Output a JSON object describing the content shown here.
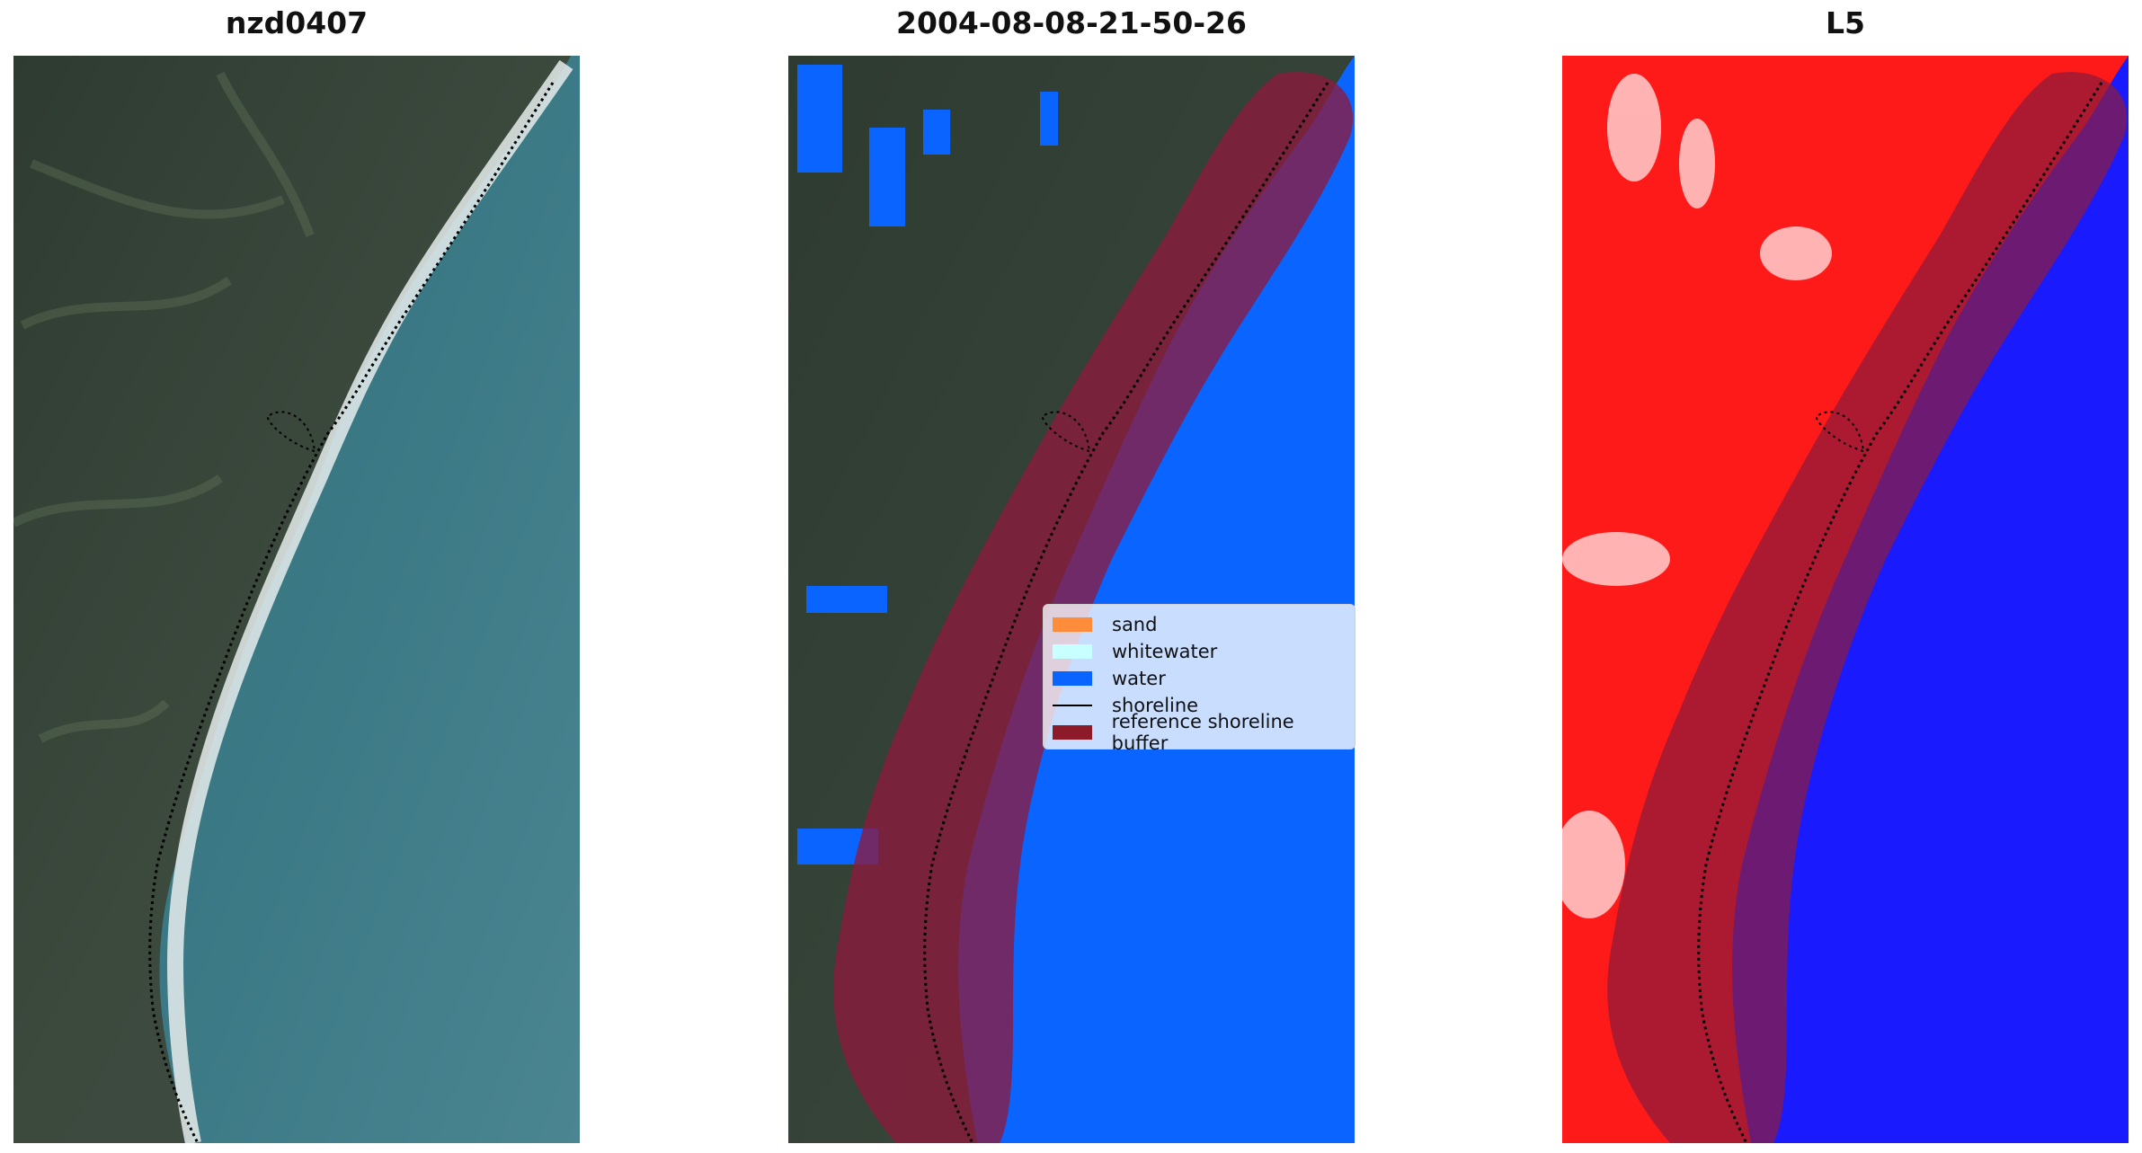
{
  "panels": [
    {
      "title": "nzd0407",
      "kind": "rgb-satellite"
    },
    {
      "title": "2004-08-08-21-50-26",
      "kind": "classified"
    },
    {
      "title": "L5",
      "kind": "index-heatmap"
    }
  ],
  "legend": {
    "items": [
      {
        "label": "sand",
        "color": "#ff8c3a"
      },
      {
        "label": "whitewater",
        "color": "#c8ffff"
      },
      {
        "label": "water",
        "color": "#0a64ff"
      },
      {
        "label": "shoreline",
        "color": "#000000"
      },
      {
        "label": "reference shoreline buffer",
        "color": "#8c1a28"
      }
    ]
  },
  "colors": {
    "land": "#3b4a3a",
    "sea": "#3f7a86",
    "surf": "#e8eeee",
    "water_class": "#0a64ff",
    "buffer": "#8c1a3c",
    "heat_land": "#ff1a1a",
    "heat_sea": "#1a1aff"
  },
  "icons": [
    "shoreline-dotted-line",
    "shoreline-buffer-band"
  ]
}
